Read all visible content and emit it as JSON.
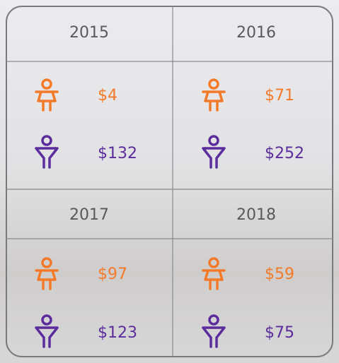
{
  "panels": [
    {
      "year": "2015",
      "female": "$4",
      "male": "$132"
    },
    {
      "year": "2016",
      "female": "$71",
      "male": "$252"
    },
    {
      "year": "2017",
      "female": "$97",
      "male": "$123"
    },
    {
      "year": "2018",
      "female": "$59",
      "male": "$75"
    }
  ]
}
